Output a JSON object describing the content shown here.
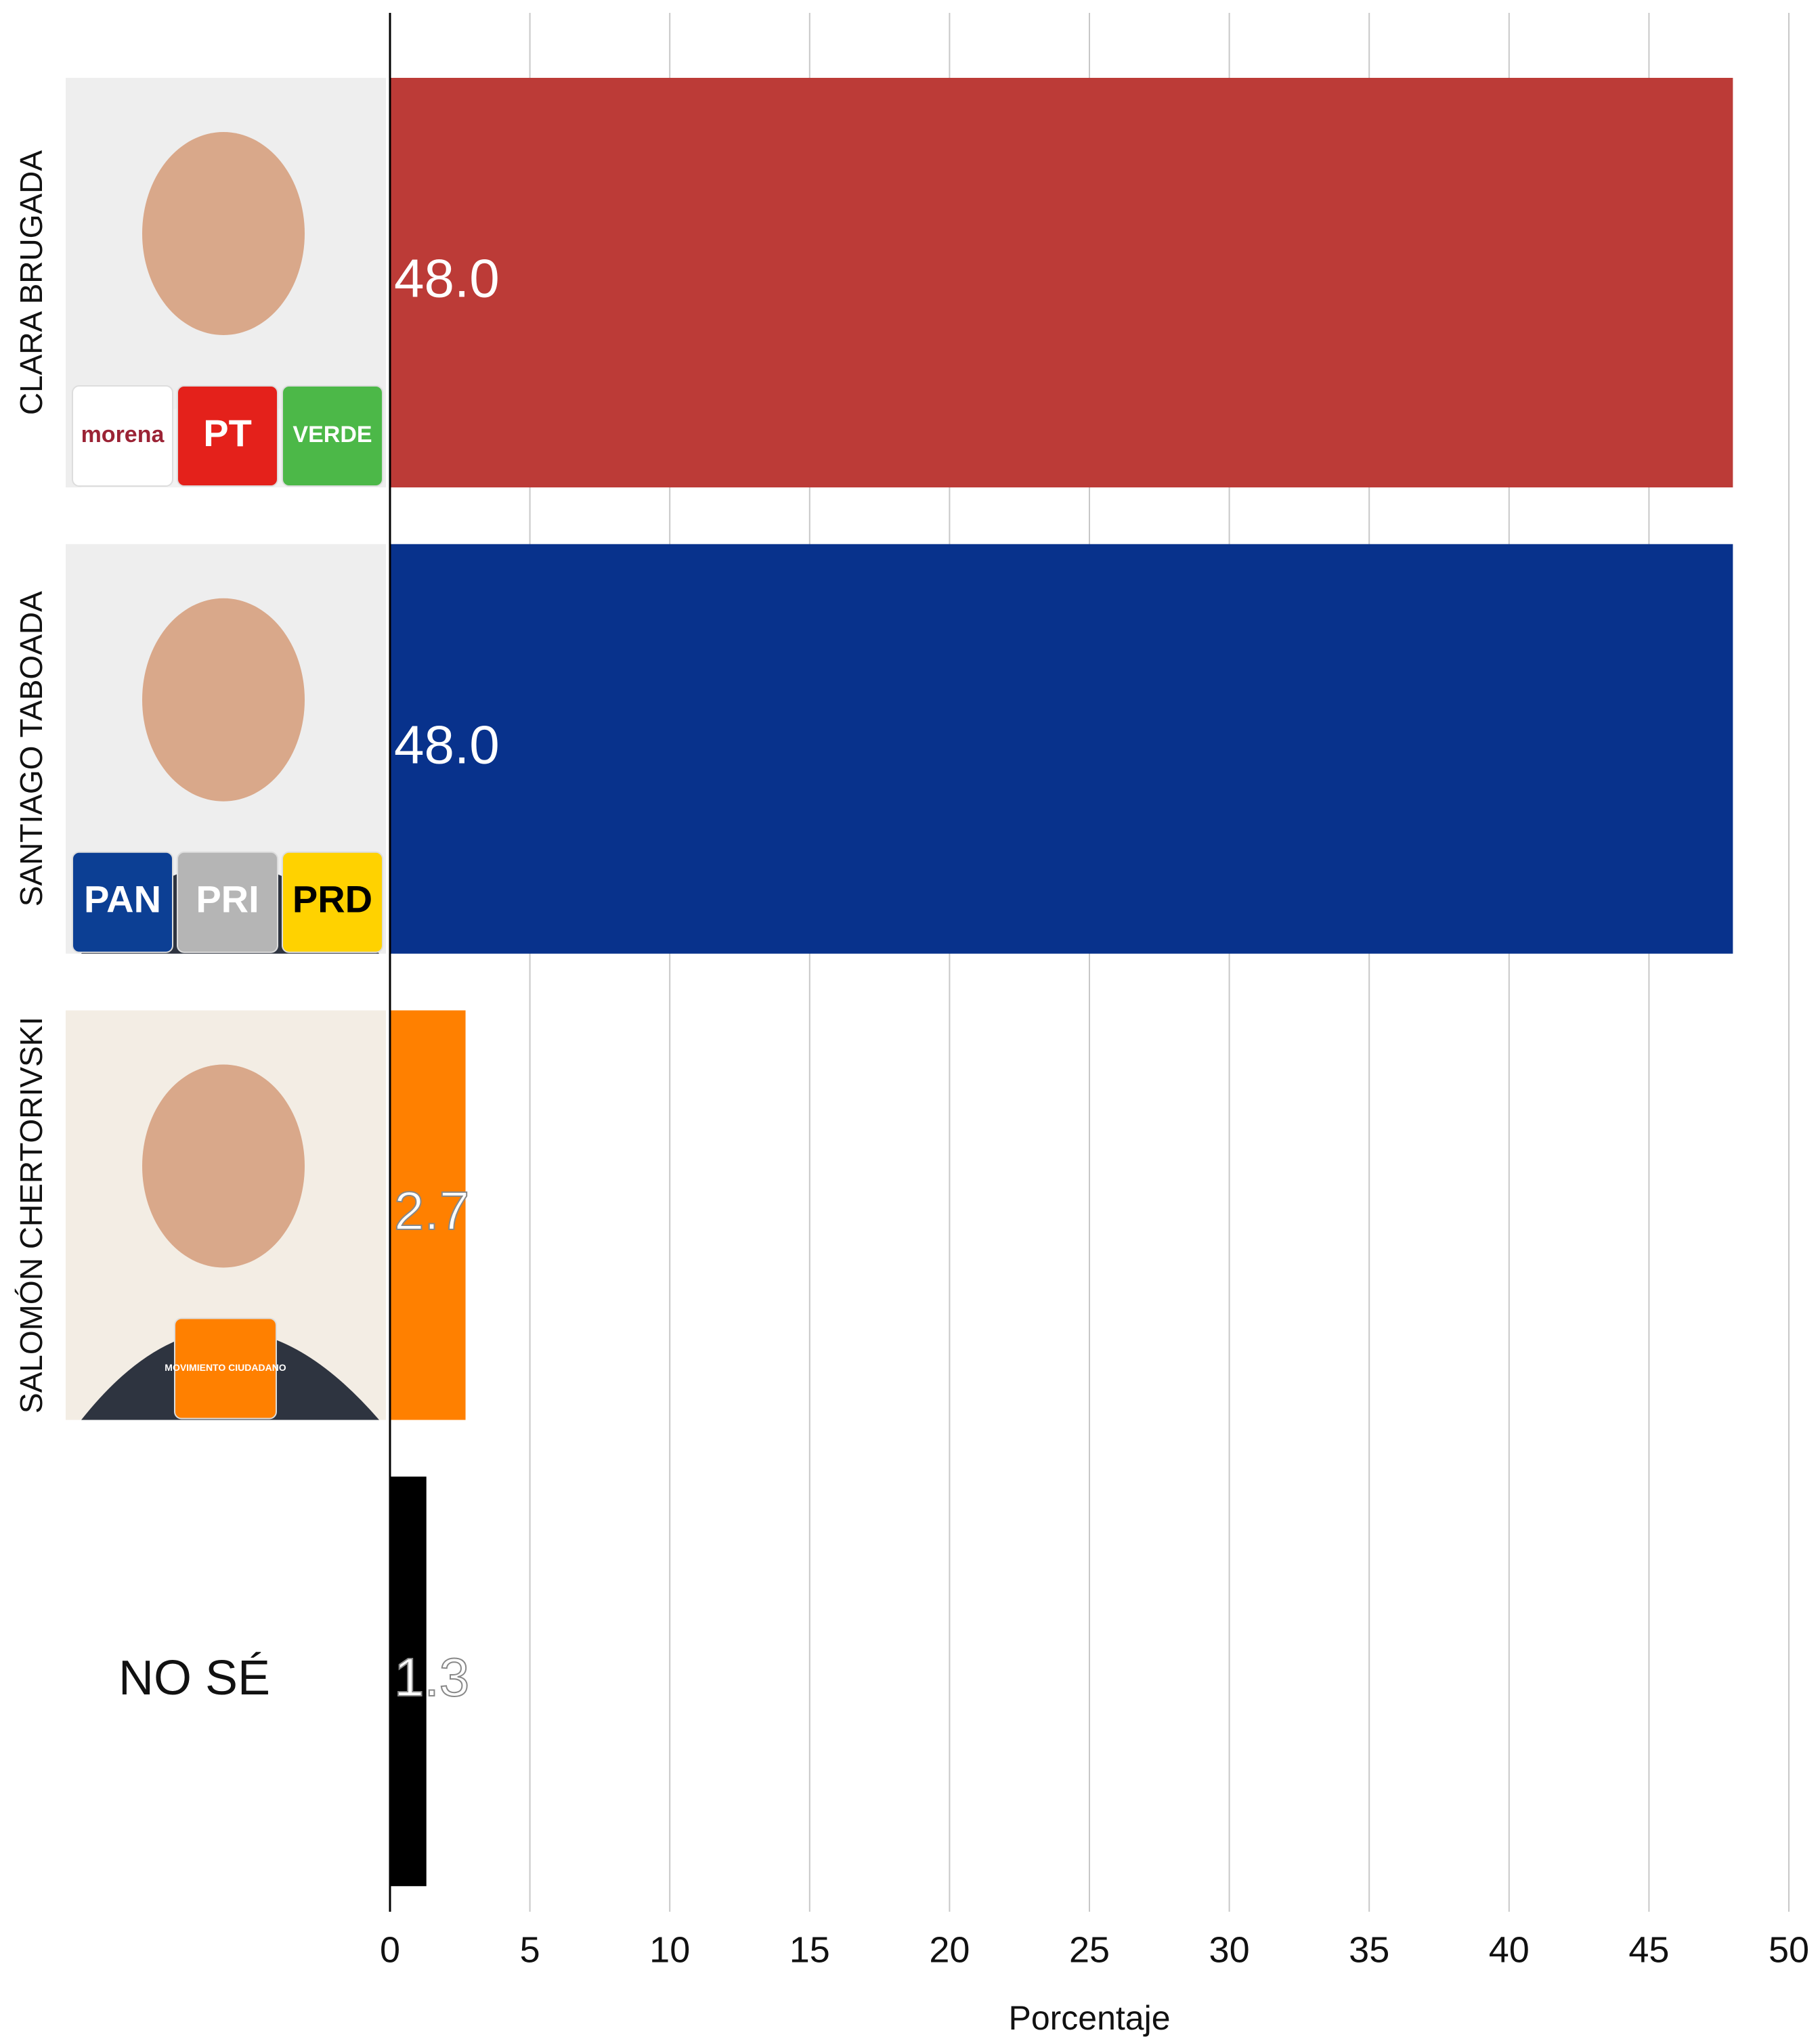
{
  "chart_data": {
    "type": "barh",
    "categories": [
      "CLARA BRUGADA",
      "SANTIAGO TABOADA",
      "SALOMÓN CHERTORIVSKI",
      "NO SÉ"
    ],
    "values": [
      48.0,
      48.0,
      2.7,
      1.3
    ],
    "value_labels": [
      "48.0",
      "48.0",
      "2.7",
      "1.3"
    ],
    "colors": [
      "#bc3b37",
      "#08328c",
      "#ff8000",
      "#000000"
    ],
    "logos": [
      [
        {
          "label": "morena",
          "color": "#ffffff"
        },
        {
          "label": "PT",
          "color": "#e4211b"
        },
        {
          "label": "VERDE",
          "color": "#4cb848"
        }
      ],
      [
        {
          "label": "PAN",
          "color": "#0c3f94"
        },
        {
          "label": "PRI",
          "color": "#b5b5b5"
        },
        {
          "label": "PRD",
          "color": "#ffd200"
        }
      ],
      [
        {
          "label": "MOVIMIENTO CIUDADANO",
          "color": "#ff8000"
        }
      ],
      []
    ],
    "xlabel": "Porcentaje",
    "xlim": [
      0,
      50
    ],
    "xticks": [
      0,
      5,
      10,
      15,
      20,
      25,
      30,
      35,
      40,
      45,
      50
    ],
    "grid": true
  }
}
